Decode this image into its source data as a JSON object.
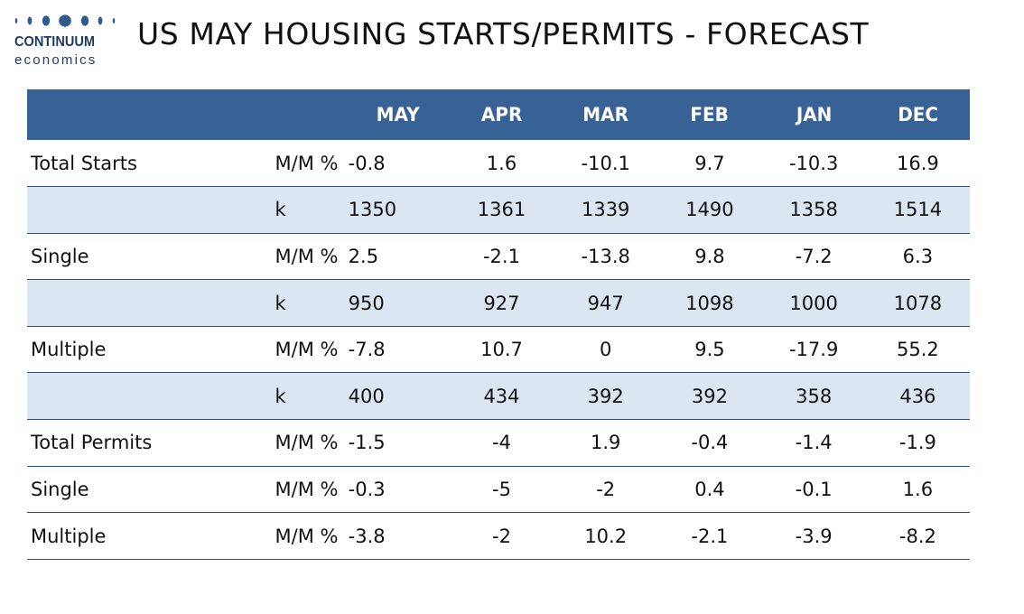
{
  "logo": {
    "brand": "CONTINUUM",
    "sub": "economics",
    "color": "#1f3a5f"
  },
  "title": "US MAY HOUSING STARTS/PERMITS - FORECAST",
  "table": {
    "header_color": "#386195",
    "shade_color": "#dce6f2",
    "columns": [
      "MAY",
      "APR",
      "MAR",
      "FEB",
      "JAN",
      "DEC"
    ],
    "rows": [
      {
        "label": "Total Starts",
        "unit": "M/M %",
        "values": [
          "-0.8",
          "1.6",
          "-10.1",
          "9.7",
          "-10.3",
          "16.9"
        ]
      },
      {
        "label": "",
        "unit": "k",
        "values": [
          "1350",
          "1361",
          "1339",
          "1490",
          "1358",
          "1514"
        ]
      },
      {
        "label": "Single",
        "unit": "M/M %",
        "values": [
          "2.5",
          "-2.1",
          "-13.8",
          "9.8",
          "-7.2",
          "6.3"
        ]
      },
      {
        "label": "",
        "unit": "k",
        "values": [
          "950",
          "927",
          "947",
          "1098",
          "1000",
          "1078"
        ]
      },
      {
        "label": "Multiple",
        "unit": "M/M %",
        "values": [
          "-7.8",
          "10.7",
          "0",
          "9.5",
          "-17.9",
          "55.2"
        ]
      },
      {
        "label": "",
        "unit": "k",
        "values": [
          "400",
          "434",
          "392",
          "392",
          "358",
          "436"
        ]
      },
      {
        "label": "Total Permits",
        "unit": "M/M %",
        "values": [
          "-1.5",
          "-4",
          "1.9",
          "-0.4",
          "-1.4",
          "-1.9"
        ]
      },
      {
        "label": "Single",
        "unit": "M/M %",
        "values": [
          "-0.3",
          "-5",
          "-2",
          "0.4",
          "-0.1",
          "1.6"
        ]
      },
      {
        "label": "Multiple",
        "unit": "M/M %",
        "values": [
          "-3.8",
          "-2",
          "10.2",
          "-2.1",
          "-3.9",
          "-8.2"
        ]
      }
    ]
  }
}
